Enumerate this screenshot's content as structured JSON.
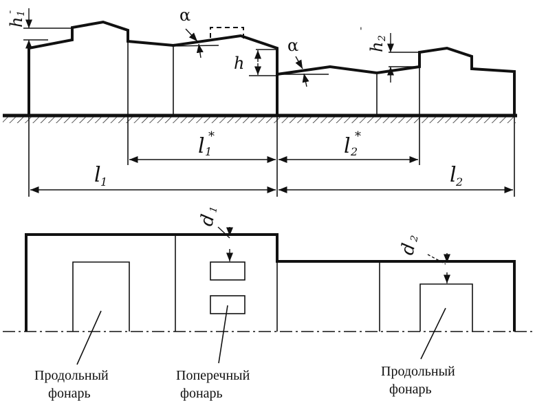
{
  "dimensions": {
    "l1": "l",
    "l1_sub": "1",
    "l2": "l",
    "l2_sub": "2",
    "l1_star": "l",
    "l1_star_sub": "1",
    "l2_star": "l",
    "l2_star_sub": "2",
    "star": "*",
    "h": "h",
    "h1": "h",
    "h1_sub": "1",
    "h2": "h",
    "h2_sub": "2",
    "prime": "'",
    "d1": "d",
    "d1_sub": "1",
    "d2": "d",
    "d2_sub": "2",
    "alpha": "α"
  },
  "captions": {
    "left_line1": "Продольный",
    "left_line2": "фонарь",
    "center_line1": "Поперечный",
    "center_line2": "фонарь",
    "right_line1": "Продольный",
    "right_line2": "фонарь"
  }
}
